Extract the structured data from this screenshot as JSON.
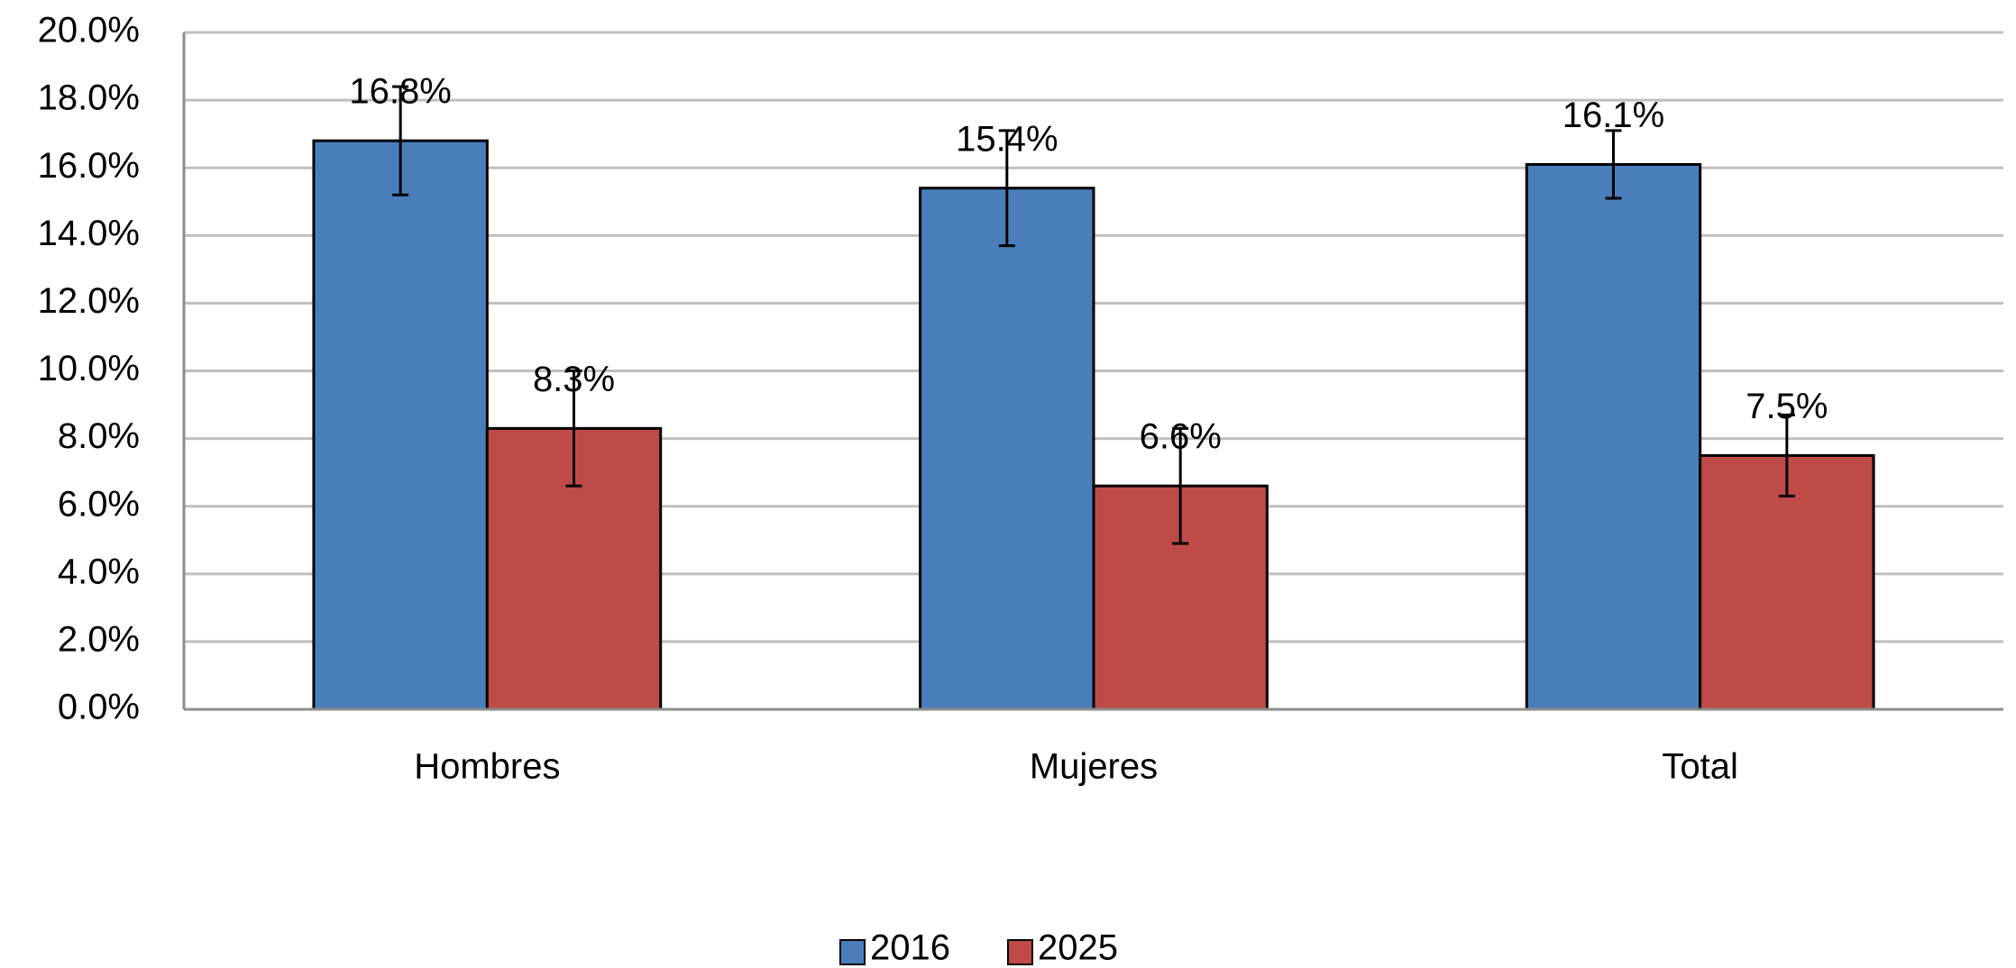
{
  "chart_data": {
    "type": "bar",
    "categories": [
      "Hombres",
      "Mujeres",
      "Total"
    ],
    "series": [
      {
        "name": "2016",
        "color": "#4a7ebb",
        "values": [
          16.8,
          15.4,
          16.1
        ],
        "errors": [
          1.6,
          1.7,
          1.0
        ],
        "value_labels": [
          "16.8%",
          "15.4%",
          "16.1%"
        ]
      },
      {
        "name": "2025",
        "color": "#be4b48",
        "values": [
          8.3,
          6.6,
          7.5
        ],
        "errors": [
          1.7,
          1.7,
          1.2
        ],
        "value_labels": [
          "8.3%",
          "6.6%",
          "7.5%"
        ]
      }
    ],
    "ylim": [
      0,
      20
    ],
    "yticks": [
      {
        "value": 0,
        "label": "0.0%"
      },
      {
        "value": 2,
        "label": "2.0%"
      },
      {
        "value": 4,
        "label": "4.0%"
      },
      {
        "value": 6,
        "label": "6.0%"
      },
      {
        "value": 8,
        "label": "8.0%"
      },
      {
        "value": 10,
        "label": "10.0%"
      },
      {
        "value": 12,
        "label": "12.0%"
      },
      {
        "value": 14,
        "label": "14.0%"
      },
      {
        "value": 16,
        "label": "16.0%"
      },
      {
        "value": 18,
        "label": "18.0%"
      },
      {
        "value": 20,
        "label": "20.0%"
      }
    ],
    "grid": true,
    "legend": "bottom"
  }
}
